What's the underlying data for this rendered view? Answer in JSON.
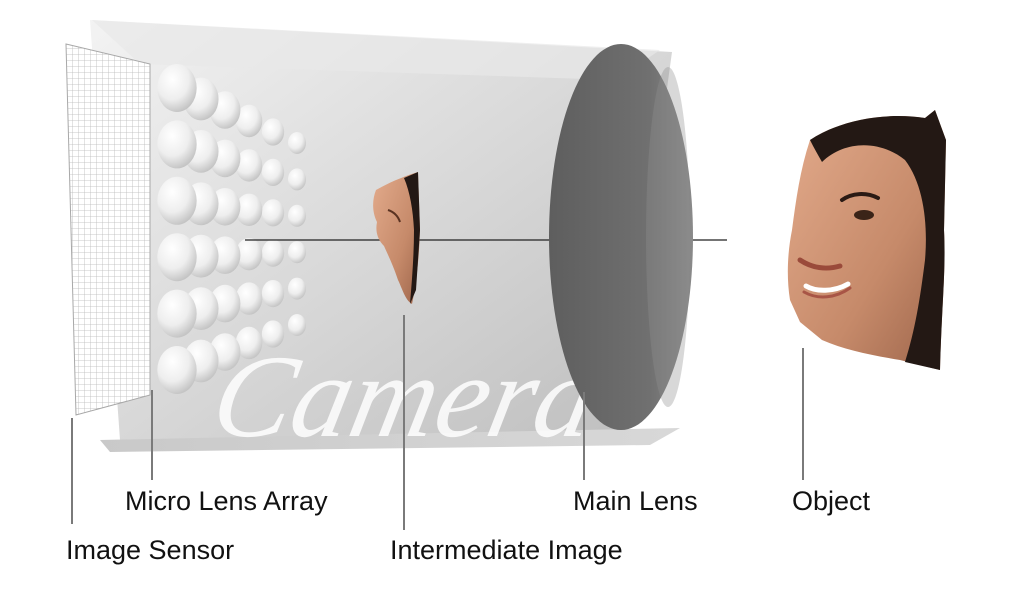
{
  "camera": {
    "watermark": "Camera"
  },
  "labels": {
    "image_sensor": "Image Sensor",
    "micro_lens_array": "Micro Lens Array",
    "intermediate_image": "Intermediate Image",
    "main_lens": "Main Lens",
    "object": "Object"
  },
  "colors": {
    "housing": "#d2d2d2",
    "main_lens": "#6e6e6e",
    "skin": "#c68a6a",
    "hair": "#231814",
    "leader_line": "#7a7a7a"
  }
}
